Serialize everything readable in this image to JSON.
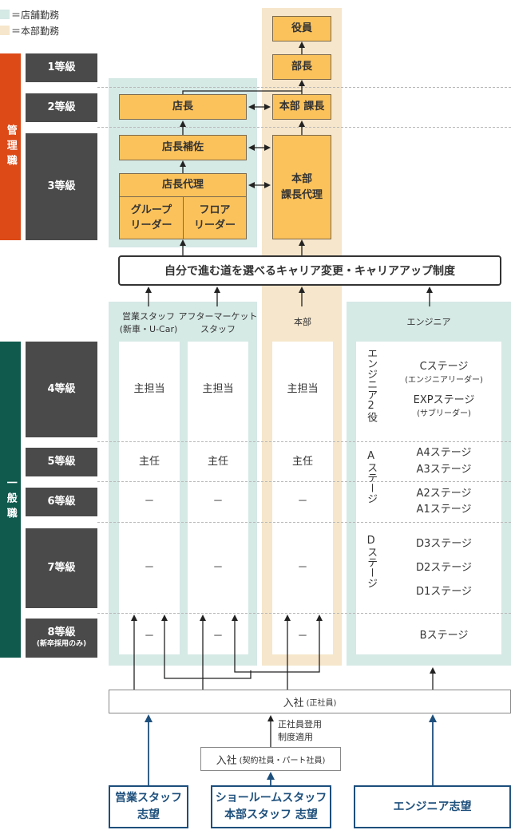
{
  "legend": {
    "store": {
      "label": "＝店舗勤務",
      "color": "#d5e9e5"
    },
    "hq": {
      "label": "＝本部勤務",
      "color": "#f6e6cb"
    }
  },
  "categories": {
    "management": "管理職",
    "general": "一般職"
  },
  "grades": {
    "g1": "1等級",
    "g2": "2等級",
    "g3": "3等級",
    "g4": "4等級",
    "g5": "5等級",
    "g6": "6等級",
    "g7": "7等級",
    "g8": "8等級",
    "g8_note": "(新卒採用のみ)"
  },
  "management": {
    "officer": "役員",
    "bucho": "部長",
    "tencho": "店長",
    "honbu_kacho": "本部 課長",
    "tencho_hosa": "店長補佐",
    "tencho_dairi": "店長代理",
    "honbu_kacho_dairi": "本部\n課長代理",
    "group_leader": "グループ\nリーダー",
    "floor_leader": "フロア\nリーダー"
  },
  "banner": "自分で進む道を選べるキャリア変更・キャリアアップ制度",
  "columns": {
    "sales": "営業スタッフ\n(新車・U-Car)",
    "aftermarket": "アフターマーケット\nスタッフ",
    "hq": "本部",
    "engineer": "エンジニア"
  },
  "cells": {
    "shutanto": "主担当",
    "shunin": "主任",
    "none": "－"
  },
  "engineer": {
    "role2": "エンジニア2役",
    "c_stage": "Cステージ",
    "c_stage_note": "(エンジニアリーダー)",
    "exp_stage": "EXPステージ",
    "exp_stage_note": "(サブリーダー)",
    "a_group": "Aステージ",
    "a4": "A4ステージ",
    "a3": "A3ステージ",
    "a2": "A2ステージ",
    "a1": "A1ステージ",
    "d_group": "Dステージ",
    "d3": "D3ステージ",
    "d2": "D2ステージ",
    "d1": "D1ステージ",
    "b": "Bステージ"
  },
  "entry": {
    "main_prefix": "入社",
    "main_note": "(正社員)",
    "contract_prefix": "入社",
    "contract_note": "(契約社員・パート社員)",
    "promotion_note": "正社員登用\n制度適用"
  },
  "aspirations": {
    "sales": "営業スタッフ\n志望",
    "showroom": "ショールームスタッフ\n本部スタッフ 志望",
    "engineer": "エンジニア志望"
  }
}
